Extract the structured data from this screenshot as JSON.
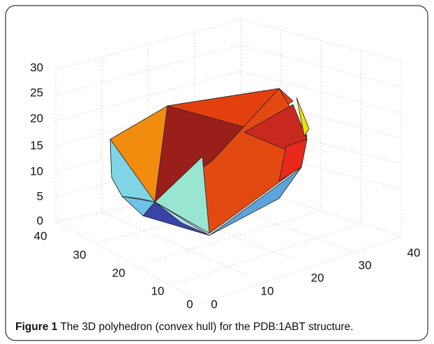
{
  "figure": {
    "z_ticks": [
      "0",
      "5",
      "10",
      "15",
      "20",
      "25",
      "30"
    ],
    "left_ticks": [
      "40",
      "30",
      "20",
      "10",
      "0"
    ],
    "right_ticks": [
      "0",
      "10",
      "20",
      "30",
      "40"
    ],
    "caption": {
      "label": "Figure 1",
      "text": "The 3D polyhedron (convex hull) for the PDB:1ABT structure."
    }
  }
}
